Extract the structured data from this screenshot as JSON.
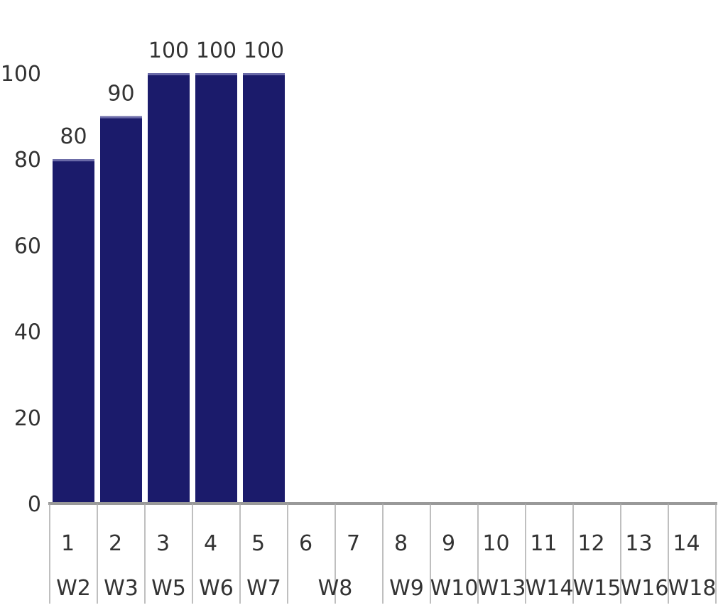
{
  "chart_data": {
    "type": "bar",
    "categories": [
      "1",
      "2",
      "3",
      "4",
      "5",
      "6",
      "7",
      "8",
      "9",
      "10",
      "11",
      "12",
      "13",
      "14"
    ],
    "values": [
      80,
      90,
      100,
      100,
      100,
      null,
      null,
      null,
      null,
      null,
      null,
      null,
      null,
      null
    ],
    "data_labels": [
      "80",
      "90",
      "100",
      "100",
      "100",
      "",
      "",
      "",
      "",
      "",
      "",
      "",
      "",
      ""
    ],
    "groups": [
      {
        "label": "W2",
        "categories": [
          "1"
        ]
      },
      {
        "label": "W3",
        "categories": [
          "2"
        ]
      },
      {
        "label": "W5",
        "categories": [
          "3"
        ]
      },
      {
        "label": "W6",
        "categories": [
          "4"
        ]
      },
      {
        "label": "W7",
        "categories": [
          "5"
        ]
      },
      {
        "label": "W8",
        "categories": [
          "6",
          "7"
        ]
      },
      {
        "label": "W9",
        "categories": [
          "8"
        ]
      },
      {
        "label": "W10",
        "categories": [
          "9"
        ]
      },
      {
        "label": "W13",
        "categories": [
          "10"
        ]
      },
      {
        "label": "W14",
        "categories": [
          "11"
        ]
      },
      {
        "label": "W15",
        "categories": [
          "12"
        ]
      },
      {
        "label": "W16",
        "categories": [
          "13"
        ]
      },
      {
        "label": "W18",
        "categories": [
          "14"
        ]
      }
    ],
    "ylim": [
      0,
      100
    ],
    "yticks": [
      "0",
      "20",
      "40",
      "60",
      "80",
      "100"
    ],
    "grid": false,
    "colors": {
      "bar": "#1b1b6b",
      "axis": "#999999",
      "text": "#333333"
    }
  }
}
